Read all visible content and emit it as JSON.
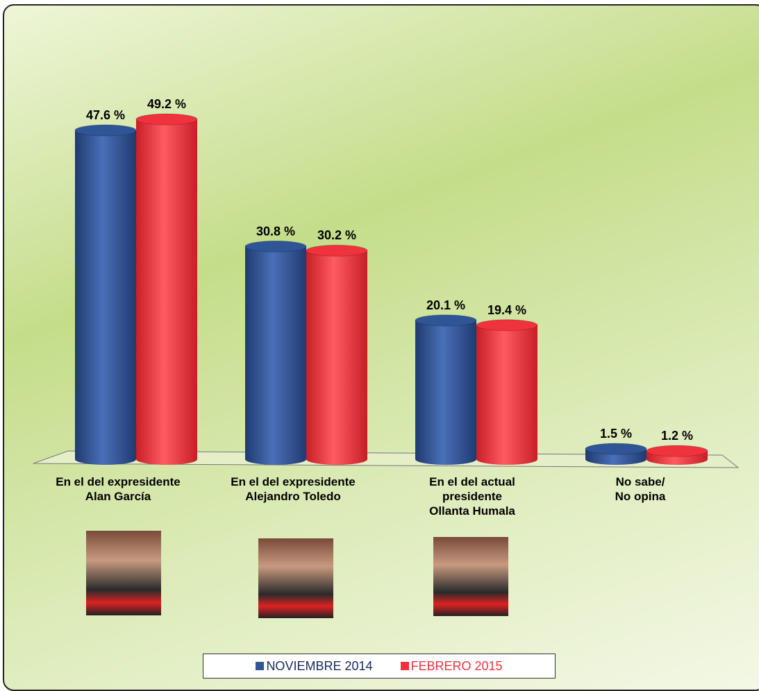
{
  "chart_data": {
    "type": "bar3d",
    "categories": [
      "En el del expresidente\nAlan García",
      "En el del expresidente\nAlejandro Toledo",
      "En el del actual\npresidente\nOllanta Humala",
      "No sabe/\nNo opina"
    ],
    "series": [
      {
        "name": "NOVIEMBRE 2014",
        "color": "#2f5597",
        "values": [
          47.6,
          30.8,
          20.1,
          1.5
        ],
        "value_labels": [
          "47.6 %",
          "30.8 %",
          "20.1 %",
          "1.5 %"
        ]
      },
      {
        "name": "FEBRERO 2015",
        "color": "#f0323c",
        "values": [
          49.2,
          30.2,
          19.4,
          1.2
        ],
        "value_labels": [
          "49.2 %",
          "30.2 %",
          "19.4 %",
          "1.2 %"
        ]
      }
    ],
    "legend": "bottom"
  }
}
